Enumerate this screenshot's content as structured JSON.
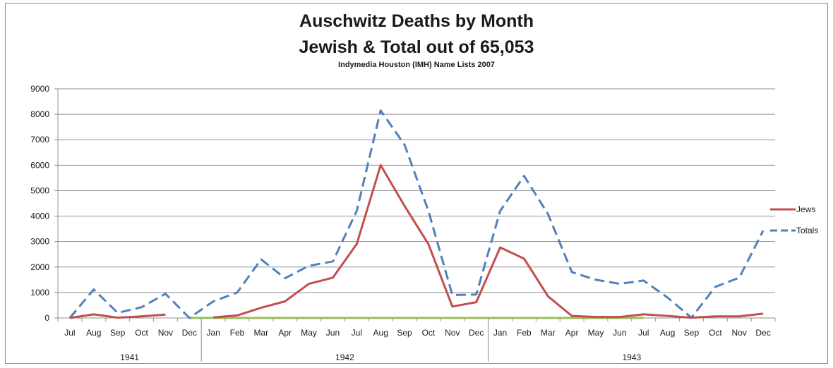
{
  "chart_data": {
    "type": "line",
    "title": "Auschwitz Deaths by Month",
    "title_line2": "Jewish & Total out of 65,053",
    "subtitle": "Indymedia Houston (IMH) Name Lists 2007",
    "xlabel": "",
    "ylabel": "",
    "ylim": [
      0,
      9000
    ],
    "yticks": [
      0,
      1000,
      2000,
      3000,
      4000,
      5000,
      6000,
      7000,
      8000,
      9000
    ],
    "grid": true,
    "legend_position": "right",
    "categories": [
      "Jul",
      "Aug",
      "Sep",
      "Oct",
      "Nov",
      "Dec",
      "Jan",
      "Feb",
      "Mar",
      "Apr",
      "May",
      "Jun",
      "Jul",
      "Aug",
      "Sep",
      "Oct",
      "Nov",
      "Dec",
      "Jan",
      "Feb",
      "Mar",
      "Apr",
      "May",
      "Jun",
      "Jul",
      "Aug",
      "Sep",
      "Oct",
      "Nov",
      "Dec"
    ],
    "year_groups": [
      {
        "label": "1941",
        "start": 0,
        "end": 5
      },
      {
        "label": "1942",
        "start": 6,
        "end": 17
      },
      {
        "label": "1943",
        "start": 18,
        "end": 29
      }
    ],
    "series": [
      {
        "name": "Jews",
        "color": "#c0504d",
        "style": "solid",
        "values": [
          0,
          140,
          10,
          60,
          130,
          null,
          20,
          100,
          400,
          650,
          1340,
          1580,
          2900,
          6000,
          4400,
          2900,
          450,
          620,
          2770,
          2330,
          850,
          80,
          40,
          40,
          140,
          80,
          10,
          60,
          60,
          170
        ]
      },
      {
        "name": "Totals",
        "color": "#4f81bd",
        "style": "dashed",
        "values": [
          0,
          1120,
          200,
          420,
          950,
          0,
          650,
          1000,
          2300,
          1560,
          2050,
          2220,
          4200,
          8150,
          6800,
          4200,
          900,
          920,
          4200,
          5580,
          4080,
          1800,
          1500,
          1340,
          1470,
          800,
          10,
          1220,
          1580,
          3430
        ]
      },
      {
        "color": "#9bbb59",
        "style": "solid",
        "values": [
          null,
          null,
          null,
          null,
          null,
          0,
          0,
          0,
          0,
          0,
          0,
          0,
          0,
          0,
          0,
          0,
          0,
          0,
          0,
          0,
          0,
          0,
          0,
          0,
          0,
          null,
          null,
          null,
          null,
          null
        ]
      }
    ]
  }
}
